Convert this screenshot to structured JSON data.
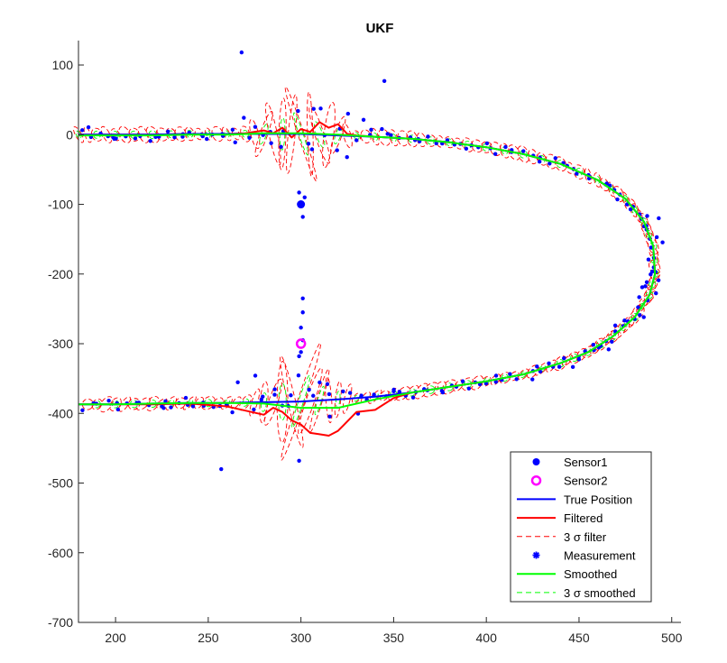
{
  "chart_data": {
    "type": "scatter",
    "title": "UKF",
    "xlabel": "",
    "ylabel": "",
    "xlim": [
      180,
      505
    ],
    "ylim": [
      -700,
      135
    ],
    "xticks": [
      200,
      250,
      300,
      350,
      400,
      450,
      500
    ],
    "yticks": [
      100,
      0,
      -100,
      -200,
      -300,
      -400,
      -500,
      -600,
      -700
    ],
    "grid": false,
    "legend_position": "bottom-right",
    "colors": {
      "sensor1": "#0000ff",
      "sensor2": "#ff00ff",
      "true_position": "#0000ff",
      "filtered": "#ff0000",
      "filter_sigma": "#ff0000",
      "measurement": "#0000ff",
      "smoothed": "#00ff00",
      "smoothed_sigma": "#00ff00"
    },
    "series": [
      {
        "name": "Sensor1",
        "marker": "filled-dot",
        "points": [
          [
            300,
            -100
          ]
        ]
      },
      {
        "name": "Sensor2",
        "marker": "open-circle",
        "points": [
          [
            300,
            -300
          ]
        ]
      },
      {
        "name": "True Position",
        "style": "solid",
        "x": [
          180,
          200,
          220,
          240,
          260,
          280,
          300,
          320,
          340,
          360,
          380,
          400,
          420,
          440,
          460,
          475,
          485,
          490,
          491,
          488,
          480,
          468,
          455,
          440,
          420,
          400,
          380,
          360,
          340,
          320,
          300,
          280,
          260,
          240,
          220,
          200,
          180
        ],
        "y": [
          0,
          0,
          0,
          1,
          1,
          1,
          1,
          -1,
          -3,
          -6,
          -11,
          -18,
          -28,
          -42,
          -65,
          -92,
          -125,
          -160,
          -200,
          -230,
          -262,
          -290,
          -312,
          -328,
          -344,
          -354,
          -362,
          -370,
          -376,
          -380,
          -383,
          -384,
          -385,
          -385,
          -386,
          -387,
          -387
        ]
      },
      {
        "name": "Filtered",
        "style": "solid",
        "x": [
          180,
          200,
          220,
          240,
          260,
          270,
          280,
          285,
          290,
          295,
          300,
          305,
          310,
          315,
          320,
          325,
          330,
          340,
          360,
          380,
          400,
          420,
          440,
          460,
          475,
          485,
          490,
          491,
          488,
          480,
          468,
          455,
          440,
          420,
          400,
          380,
          360,
          350,
          340,
          330,
          320,
          315,
          310,
          305,
          300,
          295,
          290,
          285,
          280,
          260,
          240,
          220,
          200,
          180
        ],
        "y": [
          0,
          0,
          0,
          1,
          1,
          2,
          6,
          2,
          10,
          -4,
          8,
          4,
          18,
          10,
          15,
          1,
          -1,
          -3,
          -6,
          -11,
          -18,
          -28,
          -42,
          -65,
          -92,
          -125,
          -160,
          -200,
          -230,
          -262,
          -290,
          -312,
          -328,
          -344,
          -354,
          -362,
          -370,
          -378,
          -395,
          -398,
          -425,
          -432,
          -430,
          -428,
          -416,
          -410,
          -398,
          -392,
          -402,
          -390,
          -386,
          -387,
          -387,
          -387
        ]
      },
      {
        "name": "3 σ filter",
        "style": "dashed",
        "note": "uncertainty ellipses"
      },
      {
        "name": "Measurement",
        "marker": "asterisk",
        "note": "noisy samples around the trajectory"
      },
      {
        "name": "Smoothed",
        "style": "solid",
        "x": [
          180,
          200,
          220,
          240,
          260,
          280,
          300,
          320,
          340,
          360,
          380,
          400,
          420,
          440,
          460,
          475,
          485,
          490,
          491,
          488,
          480,
          468,
          455,
          440,
          420,
          400,
          380,
          360,
          340,
          320,
          300,
          280,
          260,
          240,
          220,
          200,
          180
        ],
        "y": [
          -1,
          -1,
          -1,
          0,
          0,
          2,
          2,
          0,
          -3,
          -6,
          -11,
          -18,
          -28,
          -42,
          -65,
          -92,
          -125,
          -160,
          -200,
          -230,
          -262,
          -290,
          -312,
          -328,
          -344,
          -354,
          -362,
          -370,
          -380,
          -392,
          -392,
          -386,
          -385,
          -385,
          -386,
          -387,
          -387
        ]
      },
      {
        "name": "3 σ smoothed",
        "style": "dashed",
        "note": "uncertainty ellipses"
      }
    ],
    "legend": [
      "Sensor1",
      "Sensor2",
      "True Position",
      "Filtered",
      "3 σ filter",
      "Measurement",
      "Smoothed",
      "3 σ smoothed"
    ]
  }
}
